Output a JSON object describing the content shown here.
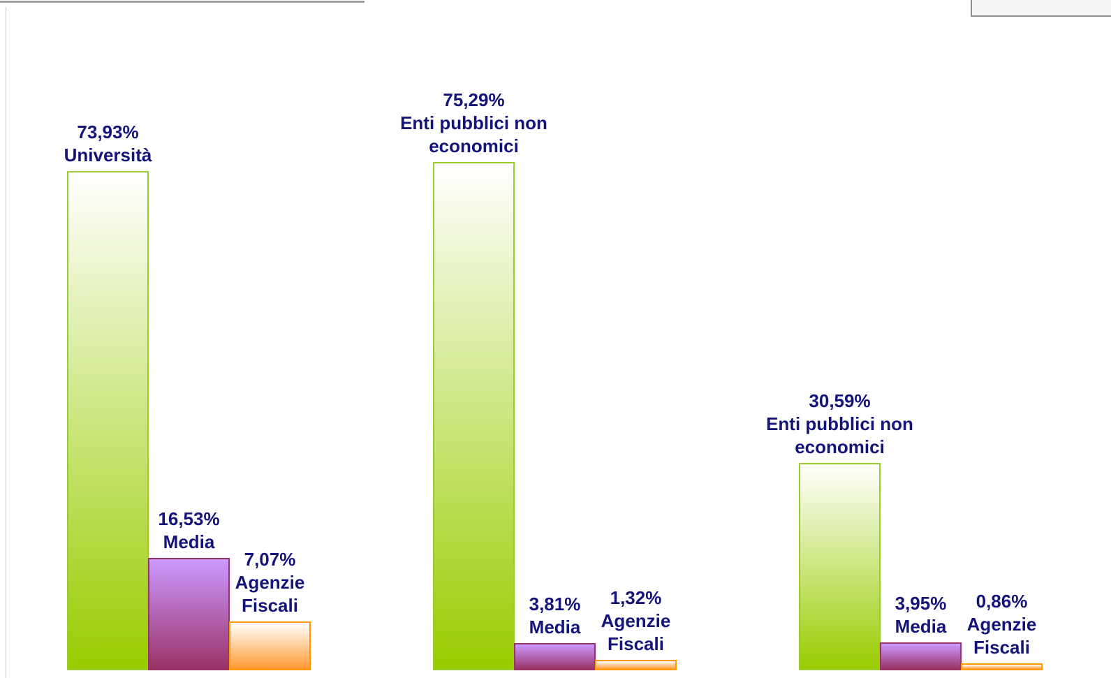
{
  "chart_data": {
    "type": "bar",
    "groups": [
      {
        "bars": [
          {
            "name": "Università",
            "value": 73.93,
            "value_label": "73,93%",
            "gradient": [
              "#ffffff",
              "#99cc00"
            ],
            "border": "#99cc33"
          },
          {
            "name": "Media",
            "value": 16.53,
            "value_label": "16,53%",
            "gradient": [
              "#cc99ff",
              "#993366"
            ],
            "border": "#993366"
          },
          {
            "name": "Agenzie Fiscali",
            "value": 7.07,
            "value_label": "7,07%",
            "gradient": [
              "#ffffff",
              "#ff9933"
            ],
            "border": "#ff9900"
          }
        ]
      },
      {
        "bars": [
          {
            "name": "Enti pubblici non economici",
            "value": 75.29,
            "value_label": "75,29%",
            "gradient": [
              "#ffffff",
              "#99cc00"
            ],
            "border": "#99cc33"
          },
          {
            "name": "Media",
            "value": 3.81,
            "value_label": "3,81%",
            "gradient": [
              "#cc99ff",
              "#993366"
            ],
            "border": "#993366"
          },
          {
            "name": "Agenzie Fiscali",
            "value": 1.32,
            "value_label": "1,32%",
            "gradient": [
              "#ffffff",
              "#ff9933"
            ],
            "border": "#ff9900"
          }
        ]
      },
      {
        "bars": [
          {
            "name": "Enti pubblici non economici",
            "value": 30.59,
            "value_label": "30,59%",
            "gradient": [
              "#ffffff",
              "#99cc00"
            ],
            "border": "#99cc33"
          },
          {
            "name": "Media",
            "value": 3.95,
            "value_label": "3,95%",
            "gradient": [
              "#cc99ff",
              "#993366"
            ],
            "border": "#993366"
          },
          {
            "name": "Agenzie Fiscali",
            "value": 0.86,
            "value_label": "0,86%",
            "gradient": [
              "#ffffff",
              "#ff9933"
            ],
            "border": "#ff9900"
          }
        ]
      }
    ]
  }
}
